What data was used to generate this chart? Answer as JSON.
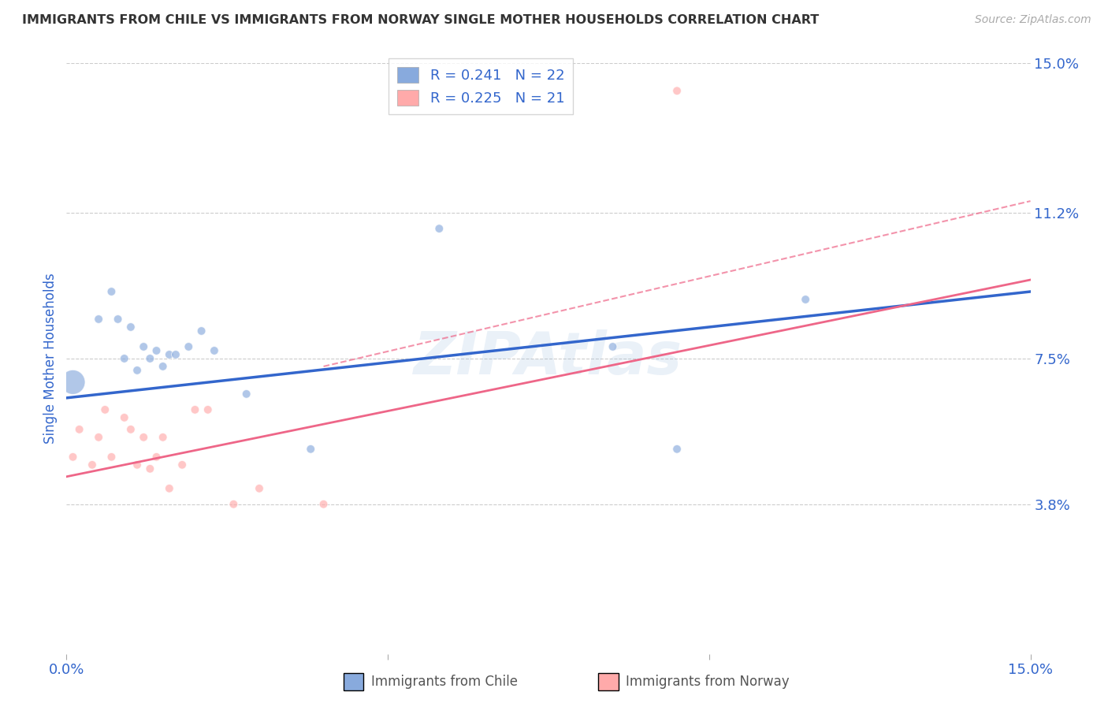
{
  "title": "IMMIGRANTS FROM CHILE VS IMMIGRANTS FROM NORWAY SINGLE MOTHER HOUSEHOLDS CORRELATION CHART",
  "source": "Source: ZipAtlas.com",
  "ylabel": "Single Mother Households",
  "xlim": [
    0.0,
    0.15
  ],
  "ylim": [
    0.0,
    0.15
  ],
  "ytick_labels": [
    "3.8%",
    "7.5%",
    "11.2%",
    "15.0%"
  ],
  "ytick_values": [
    0.038,
    0.075,
    0.112,
    0.15
  ],
  "grid_color": "#cccccc",
  "watermark": "ZIPAtlas",
  "chile_color": "#88aadd",
  "norway_color": "#ffaaaa",
  "chile_line_color": "#3366cc",
  "norway_line_color": "#ee6688",
  "chile_R": 0.241,
  "chile_N": 22,
  "norway_R": 0.225,
  "norway_N": 21,
  "chile_points_x": [
    0.001,
    0.005,
    0.007,
    0.008,
    0.009,
    0.01,
    0.011,
    0.012,
    0.013,
    0.014,
    0.015,
    0.016,
    0.017,
    0.019,
    0.021,
    0.023,
    0.028,
    0.038,
    0.058,
    0.085,
    0.095,
    0.115
  ],
  "chile_points_y": [
    0.069,
    0.085,
    0.092,
    0.085,
    0.075,
    0.083,
    0.072,
    0.078,
    0.075,
    0.077,
    0.073,
    0.076,
    0.076,
    0.078,
    0.082,
    0.077,
    0.066,
    0.052,
    0.108,
    0.078,
    0.052,
    0.09
  ],
  "chile_sizes": [
    500,
    60,
    60,
    60,
    60,
    60,
    60,
    60,
    60,
    60,
    60,
    60,
    60,
    60,
    60,
    60,
    60,
    60,
    60,
    60,
    60,
    60
  ],
  "norway_points_x": [
    0.001,
    0.002,
    0.004,
    0.005,
    0.006,
    0.007,
    0.009,
    0.01,
    0.011,
    0.012,
    0.013,
    0.014,
    0.015,
    0.016,
    0.018,
    0.02,
    0.022,
    0.026,
    0.03,
    0.04,
    0.095
  ],
  "norway_points_y": [
    0.05,
    0.057,
    0.048,
    0.055,
    0.062,
    0.05,
    0.06,
    0.057,
    0.048,
    0.055,
    0.047,
    0.05,
    0.055,
    0.042,
    0.048,
    0.062,
    0.062,
    0.038,
    0.042,
    0.038,
    0.143
  ],
  "norway_sizes": [
    60,
    60,
    60,
    60,
    60,
    60,
    60,
    60,
    60,
    60,
    60,
    60,
    60,
    60,
    60,
    60,
    60,
    60,
    60,
    60,
    60
  ],
  "background_color": "#ffffff",
  "title_color": "#333333",
  "tick_label_color": "#3366cc",
  "chile_line_start_x": 0.0,
  "chile_line_end_x": 0.15,
  "chile_line_start_y": 0.065,
  "chile_line_end_y": 0.092,
  "norway_line_start_x": 0.0,
  "norway_line_end_x": 0.15,
  "norway_line_start_y": 0.045,
  "norway_line_end_y": 0.095
}
